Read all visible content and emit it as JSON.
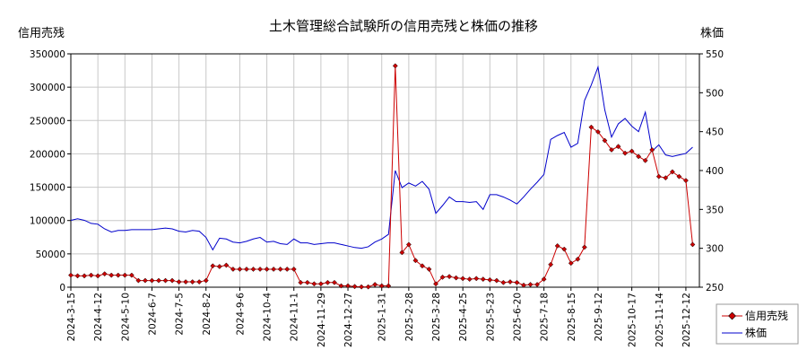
{
  "chart_data": {
    "type": "line",
    "title": "土木管理総合試験所の信用売残と株価の推移",
    "ylabel_left": "信用売残",
    "ylabel_right": "株価",
    "ylim_left": [
      0,
      350000
    ],
    "ylim_right": [
      250,
      550
    ],
    "yticks_left": [
      0,
      50000,
      100000,
      150000,
      200000,
      250000,
      300000,
      350000
    ],
    "yticks_right": [
      250,
      300,
      350,
      400,
      450,
      500,
      550
    ],
    "x_start": "2024-03-15",
    "x_end": "2025-12-26",
    "xticks": [
      "2024-3-15",
      "2024-4-12",
      "2024-5-10",
      "2024-6-7",
      "2024-7-5",
      "2024-8-2",
      "2024-9-6",
      "2024-10-4",
      "2024-11-1",
      "2024-11-29",
      "2024-12-27",
      "2025-1-31",
      "2025-2-28",
      "2025-3-28",
      "2025-4-25",
      "2025-5-23",
      "2025-6-20",
      "2025-7-18",
      "2025-8-15",
      "2025-9-12",
      "2025-10-17",
      "2025-11-14",
      "2025-12-12"
    ],
    "legend_position": "bottom-right",
    "grid": true,
    "series": [
      {
        "name": "信用売残",
        "axis": "left",
        "color": "#cc0000",
        "marker": "diamond",
        "points": [
          [
            "2024-03-15",
            18000
          ],
          [
            "2024-03-22",
            17000
          ],
          [
            "2024-03-29",
            17000
          ],
          [
            "2024-04-05",
            18000
          ],
          [
            "2024-04-12",
            17000
          ],
          [
            "2024-04-19",
            20000
          ],
          [
            "2024-04-26",
            18000
          ],
          [
            "2024-05-03",
            18000
          ],
          [
            "2024-05-10",
            18000
          ],
          [
            "2024-05-17",
            18000
          ],
          [
            "2024-05-24",
            10000
          ],
          [
            "2024-05-31",
            10000
          ],
          [
            "2024-06-07",
            10000
          ],
          [
            "2024-06-14",
            10000
          ],
          [
            "2024-06-21",
            10000
          ],
          [
            "2024-06-28",
            10000
          ],
          [
            "2024-07-05",
            8000
          ],
          [
            "2024-07-12",
            8000
          ],
          [
            "2024-07-19",
            8000
          ],
          [
            "2024-07-26",
            8000
          ],
          [
            "2024-08-02",
            10000
          ],
          [
            "2024-08-09",
            32000
          ],
          [
            "2024-08-16",
            31000
          ],
          [
            "2024-08-23",
            33000
          ],
          [
            "2024-08-30",
            27000
          ],
          [
            "2024-09-06",
            27000
          ],
          [
            "2024-09-13",
            27000
          ],
          [
            "2024-09-20",
            27000
          ],
          [
            "2024-09-27",
            27000
          ],
          [
            "2024-10-04",
            27000
          ],
          [
            "2024-10-11",
            27000
          ],
          [
            "2024-10-18",
            27000
          ],
          [
            "2024-10-25",
            27000
          ],
          [
            "2024-11-01",
            27000
          ],
          [
            "2024-11-08",
            7000
          ],
          [
            "2024-11-15",
            7000
          ],
          [
            "2024-11-22",
            5000
          ],
          [
            "2024-11-29",
            5000
          ],
          [
            "2024-12-06",
            7000
          ],
          [
            "2024-12-13",
            7000
          ],
          [
            "2024-12-20",
            2000
          ],
          [
            "2024-12-27",
            2000
          ],
          [
            "2025-01-03",
            1000
          ],
          [
            "2025-01-10",
            500
          ],
          [
            "2025-01-17",
            500
          ],
          [
            "2025-01-24",
            4000
          ],
          [
            "2025-01-31",
            2000
          ],
          [
            "2025-02-07",
            2000
          ],
          [
            "2025-02-14",
            332000
          ],
          [
            "2025-02-21",
            52000
          ],
          [
            "2025-02-28",
            64000
          ],
          [
            "2025-03-07",
            40000
          ],
          [
            "2025-03-14",
            32000
          ],
          [
            "2025-03-21",
            27000
          ],
          [
            "2025-03-28",
            5000
          ],
          [
            "2025-04-04",
            15000
          ],
          [
            "2025-04-11",
            16000
          ],
          [
            "2025-04-18",
            14000
          ],
          [
            "2025-04-25",
            13000
          ],
          [
            "2025-05-02",
            12000
          ],
          [
            "2025-05-09",
            13000
          ],
          [
            "2025-05-16",
            12000
          ],
          [
            "2025-05-23",
            11000
          ],
          [
            "2025-05-30",
            10000
          ],
          [
            "2025-06-06",
            7000
          ],
          [
            "2025-06-13",
            8000
          ],
          [
            "2025-06-20",
            7000
          ],
          [
            "2025-06-27",
            3000
          ],
          [
            "2025-07-04",
            4000
          ],
          [
            "2025-07-11",
            4000
          ],
          [
            "2025-07-18",
            12000
          ],
          [
            "2025-07-25",
            34000
          ],
          [
            "2025-08-01",
            62000
          ],
          [
            "2025-08-08",
            57000
          ],
          [
            "2025-08-15",
            36000
          ],
          [
            "2025-08-22",
            42000
          ],
          [
            "2025-08-29",
            60000
          ],
          [
            "2025-09-05",
            240000
          ],
          [
            "2025-09-12",
            233000
          ],
          [
            "2025-09-19",
            220000
          ],
          [
            "2025-09-26",
            206000
          ],
          [
            "2025-10-03",
            211000
          ],
          [
            "2025-10-10",
            201000
          ],
          [
            "2025-10-17",
            204000
          ],
          [
            "2025-10-24",
            196000
          ],
          [
            "2025-10-31",
            190000
          ],
          [
            "2025-11-07",
            206000
          ],
          [
            "2025-11-14",
            166000
          ],
          [
            "2025-11-21",
            164000
          ],
          [
            "2025-11-28",
            173000
          ],
          [
            "2025-12-05",
            166000
          ],
          [
            "2025-12-12",
            160000
          ],
          [
            "2025-12-19",
            64000
          ]
        ]
      },
      {
        "name": "株価",
        "axis": "right",
        "color": "#0000cc",
        "marker": "none",
        "points": [
          [
            "2024-03-15",
            336
          ],
          [
            "2024-03-22",
            338
          ],
          [
            "2024-03-29",
            336
          ],
          [
            "2024-04-05",
            332
          ],
          [
            "2024-04-12",
            331
          ],
          [
            "2024-04-19",
            325
          ],
          [
            "2024-04-26",
            321
          ],
          [
            "2024-05-03",
            323
          ],
          [
            "2024-05-10",
            323
          ],
          [
            "2024-05-17",
            324
          ],
          [
            "2024-05-24",
            324
          ],
          [
            "2024-05-31",
            324
          ],
          [
            "2024-06-07",
            324
          ],
          [
            "2024-06-14",
            325
          ],
          [
            "2024-06-21",
            326
          ],
          [
            "2024-06-28",
            325
          ],
          [
            "2024-07-05",
            322
          ],
          [
            "2024-07-12",
            321
          ],
          [
            "2024-07-19",
            323
          ],
          [
            "2024-07-26",
            322
          ],
          [
            "2024-08-02",
            314
          ],
          [
            "2024-08-09",
            298
          ],
          [
            "2024-08-16",
            313
          ],
          [
            "2024-08-23",
            312
          ],
          [
            "2024-08-30",
            308
          ],
          [
            "2024-09-06",
            307
          ],
          [
            "2024-09-13",
            309
          ],
          [
            "2024-09-20",
            312
          ],
          [
            "2024-09-27",
            314
          ],
          [
            "2024-10-04",
            308
          ],
          [
            "2024-10-11",
            309
          ],
          [
            "2024-10-18",
            306
          ],
          [
            "2024-10-25",
            305
          ],
          [
            "2024-11-01",
            312
          ],
          [
            "2024-11-08",
            307
          ],
          [
            "2024-11-15",
            307
          ],
          [
            "2024-11-22",
            305
          ],
          [
            "2024-11-29",
            306
          ],
          [
            "2024-12-06",
            307
          ],
          [
            "2024-12-13",
            307
          ],
          [
            "2024-12-20",
            305
          ],
          [
            "2024-12-27",
            303
          ],
          [
            "2025-01-03",
            301
          ],
          [
            "2025-01-10",
            300
          ],
          [
            "2025-01-17",
            302
          ],
          [
            "2025-01-24",
            308
          ],
          [
            "2025-01-31",
            312
          ],
          [
            "2025-02-07",
            318
          ],
          [
            "2025-02-14",
            400
          ],
          [
            "2025-02-21",
            378
          ],
          [
            "2025-02-28",
            384
          ],
          [
            "2025-03-07",
            380
          ],
          [
            "2025-03-14",
            386
          ],
          [
            "2025-03-21",
            376
          ],
          [
            "2025-03-28",
            345
          ],
          [
            "2025-04-04",
            355
          ],
          [
            "2025-04-11",
            366
          ],
          [
            "2025-04-18",
            360
          ],
          [
            "2025-04-25",
            360
          ],
          [
            "2025-05-02",
            359
          ],
          [
            "2025-05-09",
            360
          ],
          [
            "2025-05-16",
            350
          ],
          [
            "2025-05-23",
            369
          ],
          [
            "2025-05-30",
            369
          ],
          [
            "2025-06-06",
            366
          ],
          [
            "2025-06-13",
            362
          ],
          [
            "2025-06-20",
            357
          ],
          [
            "2025-06-27",
            366
          ],
          [
            "2025-07-04",
            376
          ],
          [
            "2025-07-11",
            385
          ],
          [
            "2025-07-18",
            395
          ],
          [
            "2025-07-25",
            440
          ],
          [
            "2025-08-01",
            445
          ],
          [
            "2025-08-08",
            449
          ],
          [
            "2025-08-15",
            430
          ],
          [
            "2025-08-22",
            435
          ],
          [
            "2025-08-29",
            490
          ],
          [
            "2025-09-05",
            510
          ],
          [
            "2025-09-12",
            533
          ],
          [
            "2025-09-19",
            478
          ],
          [
            "2025-09-26",
            443
          ],
          [
            "2025-10-03",
            460
          ],
          [
            "2025-10-10",
            467
          ],
          [
            "2025-10-17",
            457
          ],
          [
            "2025-10-24",
            450
          ],
          [
            "2025-10-31",
            475
          ],
          [
            "2025-11-07",
            425
          ],
          [
            "2025-11-14",
            433
          ],
          [
            "2025-11-21",
            420
          ],
          [
            "2025-11-28",
            418
          ],
          [
            "2025-12-05",
            420
          ],
          [
            "2025-12-12",
            422
          ],
          [
            "2025-12-19",
            430
          ]
        ]
      }
    ]
  }
}
